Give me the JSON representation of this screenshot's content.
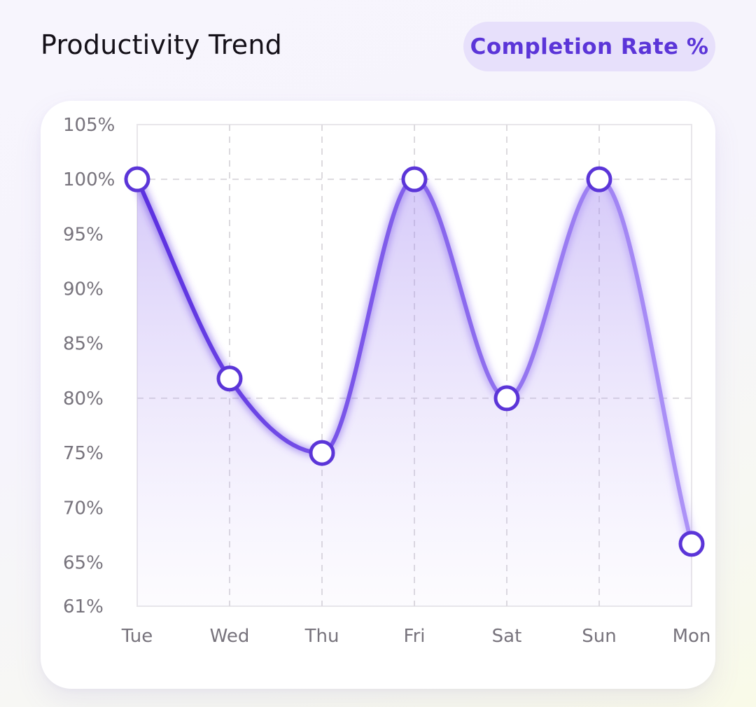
{
  "header": {
    "title": "Productivity Trend",
    "badge": "Completion Rate %"
  },
  "colors": {
    "accent": "#5b35d8",
    "badge_bg": "#e7e0fb",
    "line_start": "#5a2fe0",
    "line_end": "#a98ef6",
    "grid": "#dcdade"
  },
  "chart_data": {
    "type": "line",
    "title": "Productivity Trend",
    "xlabel": "",
    "ylabel": "",
    "categories": [
      "Tue",
      "Wed",
      "Thu",
      "Fri",
      "Sat",
      "Sun",
      "Mon"
    ],
    "series": [
      {
        "name": "Completion Rate %",
        "values": [
          100,
          81.8,
          75,
          100,
          80,
          100,
          66.7
        ]
      }
    ],
    "ylim": [
      61,
      105
    ],
    "y_ticks": [
      "105%",
      "100%",
      "95%",
      "90%",
      "85%",
      "80%",
      "75%",
      "70%",
      "65%",
      "61%"
    ],
    "y_tick_values": [
      105,
      100,
      95,
      90,
      85,
      80,
      75,
      70,
      65,
      61
    ],
    "highlighted_gridlines": [
      100,
      80
    ],
    "area_fill": true,
    "smooth": true,
    "legend": "none"
  }
}
